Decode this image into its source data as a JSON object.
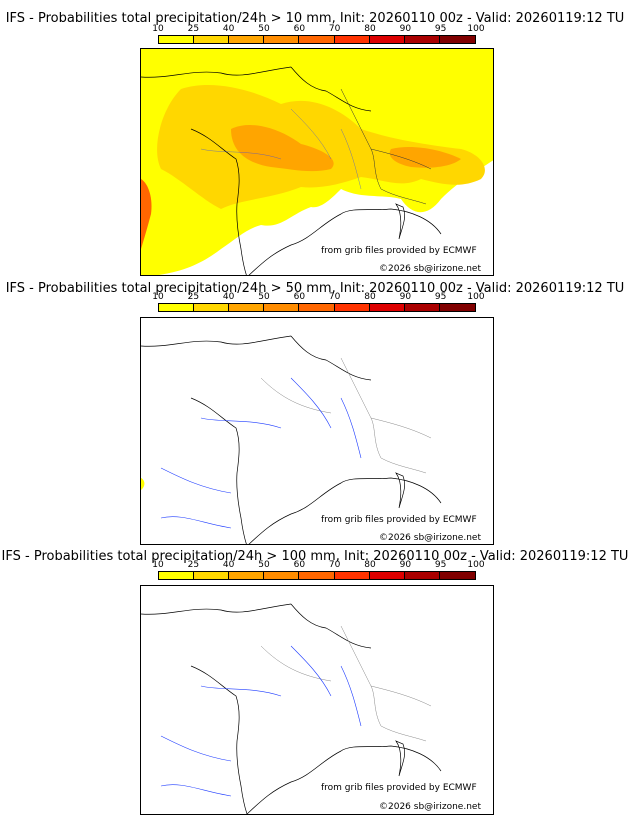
{
  "colorbar": {
    "ticks": [
      "10",
      "25",
      "40",
      "50",
      "60",
      "70",
      "80",
      "90",
      "95",
      "100"
    ],
    "colors": [
      "#ffff00",
      "#ffd700",
      "#ffa500",
      "#ff8c00",
      "#ff6600",
      "#ff3300",
      "#dd0000",
      "#aa0000",
      "#800000"
    ]
  },
  "panels": [
    {
      "title": "IFS - Probabilities total precipitation/24h > 10 mm, Init: 20260110 00z - Valid: 20260119:12 TU",
      "credit_source": "from grib files provided by ECMWF",
      "credit_copyright": "©2026 sb@irizone.net"
    },
    {
      "title": "IFS - Probabilities total precipitation/24h > 50 mm, Init: 20260110 00z - Valid: 20260119:12 TU",
      "credit_source": "from grib files provided by ECMWF",
      "credit_copyright": "©2026 sb@irizone.net"
    },
    {
      "title": "IFS - Probabilities total precipitation/24h > 100 mm, Init: 20260110 00z - Valid: 20260119:12 TU",
      "credit_source": "from grib files provided by ECMWF",
      "credit_copyright": "©2026 sb@irizone.net"
    }
  ]
}
